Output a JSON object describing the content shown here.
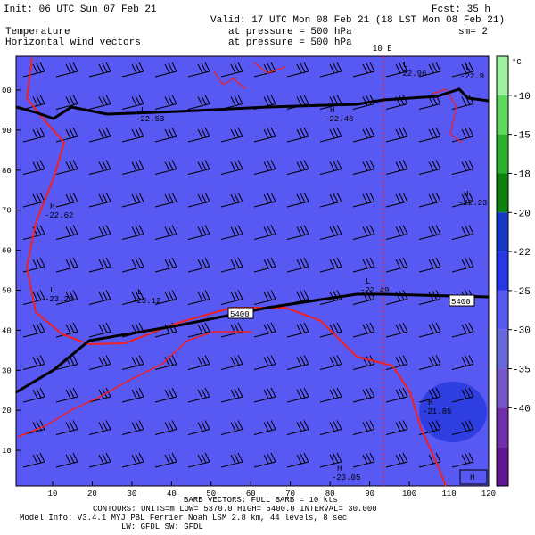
{
  "header": {
    "init": "Init: 06 UTC Sun 07 Feb 21",
    "fcst": "Fcst:    35 h",
    "valid": "Valid: 17 UTC Mon 08 Feb 21 (18 LST Mon 08 Feb 21)",
    "field1": "Temperature",
    "field2": "Horizontal wind vectors",
    "pressure1": "at pressure =  500 hPa",
    "pressure2": "at pressure =  500 hPa",
    "smooth": "sm= 2"
  },
  "map": {
    "meridian_label": "10 E",
    "x_ticks": [
      "10",
      "20",
      "30",
      "40",
      "50",
      "60",
      "70",
      "80",
      "90",
      "100",
      "110",
      "120"
    ],
    "y_ticks": [
      "00",
      "90",
      "80",
      "70",
      "60",
      "50",
      "40",
      "30",
      "20",
      "10"
    ],
    "extrema": [
      {
        "kind": "L",
        "value": "-22.96"
      },
      {
        "kind": "L",
        "value": "-22.9"
      },
      {
        "kind": "L",
        "value": "-22.53"
      },
      {
        "kind": "H",
        "value": "-22.48"
      },
      {
        "kind": "H",
        "value": "-22.62"
      },
      {
        "kind": "H",
        "value": "-22.23"
      },
      {
        "kind": "L",
        "value": "-23.23"
      },
      {
        "kind": "L",
        "value": "-23.12"
      },
      {
        "kind": "L",
        "value": "-22.49"
      },
      {
        "kind": "H",
        "value": "-21.85"
      },
      {
        "kind": "H",
        "value": "-23.05"
      }
    ],
    "contour_labels": [
      "5400",
      "5400"
    ],
    "corner_label": "H"
  },
  "colorbar": {
    "unit": "°C",
    "labels": [
      "-10",
      "-15",
      "-18",
      "-20",
      "-22",
      "-25",
      "-30",
      "-35",
      "-40"
    ]
  },
  "footer": {
    "barbs": "BARB VECTORS:  FULL BARB = 10 kts",
    "contours": "CONTOURS:  UNITS=m   LOW=  5370.0      HIGH=  5400.0   INTERVAL=    30.000",
    "model": "Model Info: V3.4.1        MYJ PBL  Ferrier       Noah LSM  2.8 km,  44 levels,   8 sec",
    "radiation": "LW: GFDL SW: GFDL"
  }
}
